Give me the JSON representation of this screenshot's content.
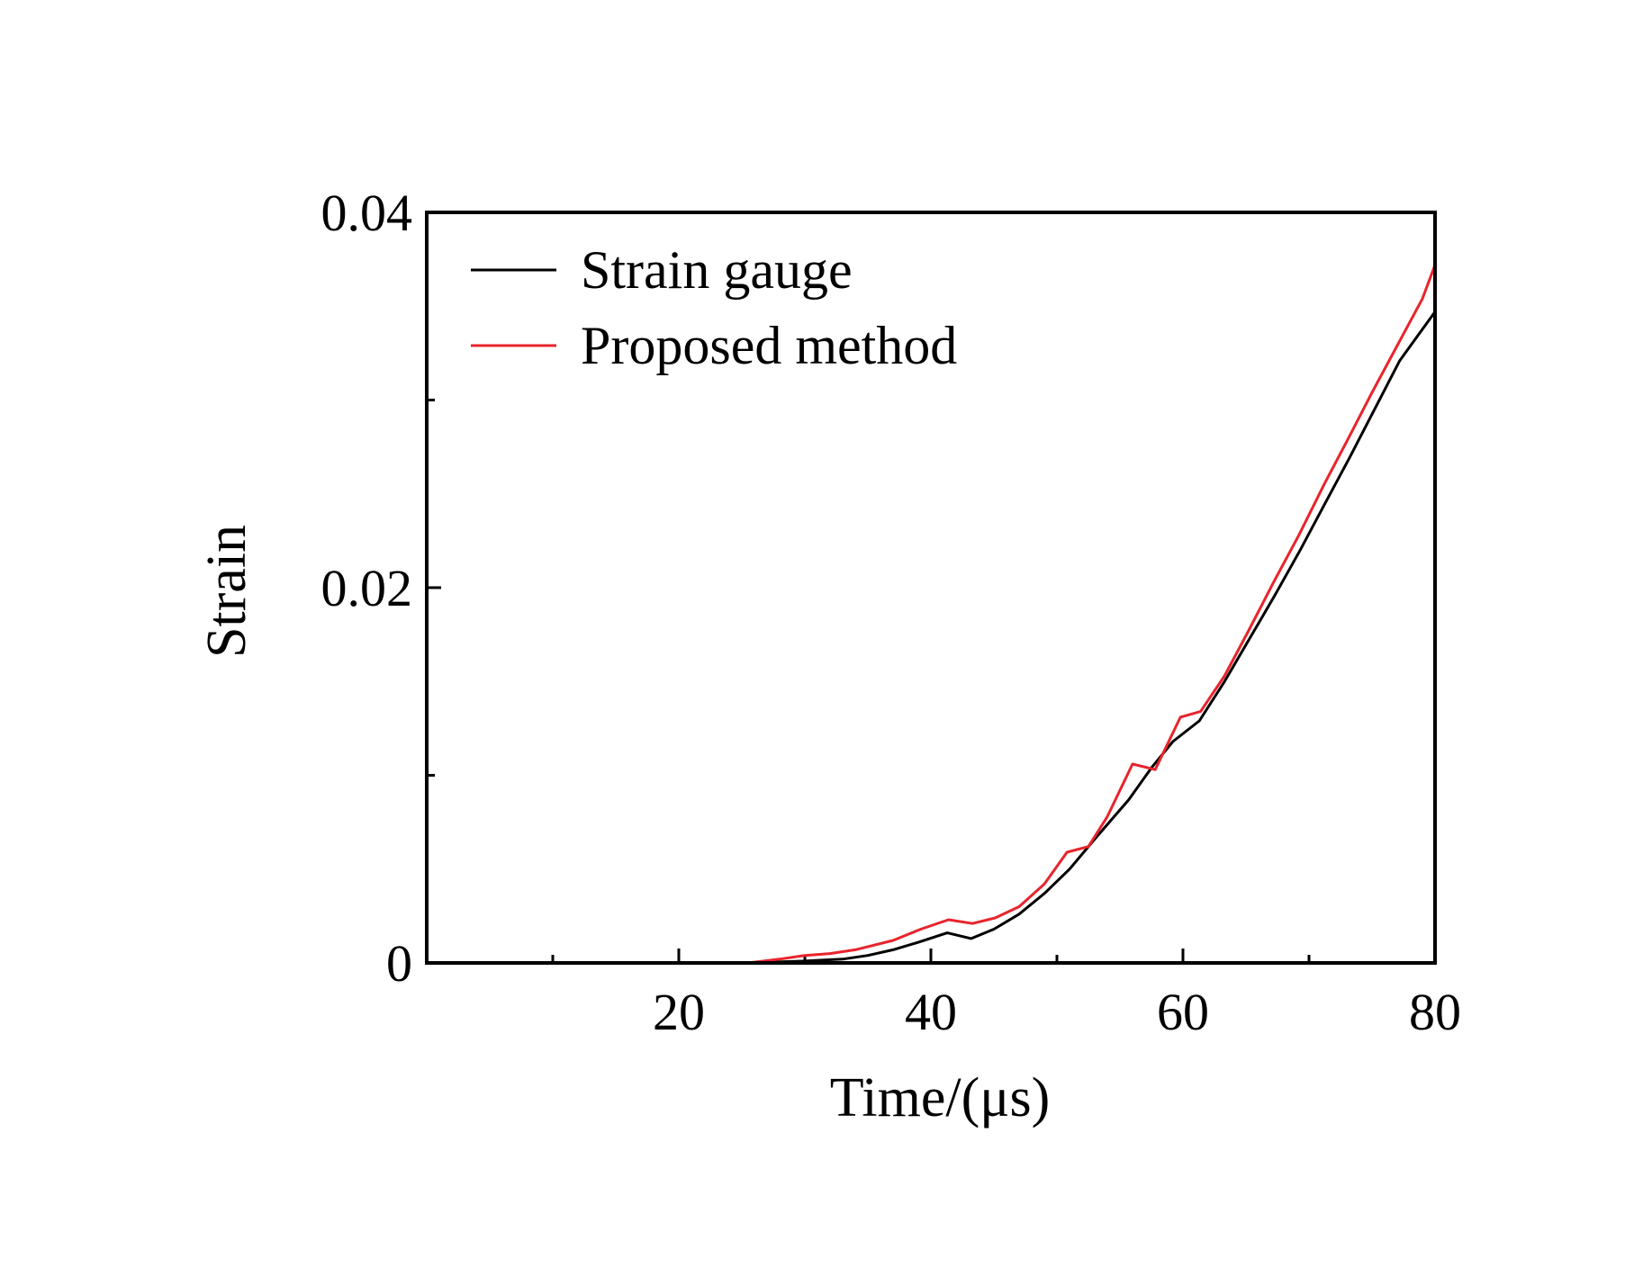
{
  "chart_data": {
    "type": "line",
    "title": "",
    "xlabel": "Time/(μs)",
    "ylabel": "Strain",
    "xlim": [
      0,
      80
    ],
    "ylim": [
      0,
      0.04
    ],
    "xticks_major": [
      20,
      40,
      60,
      80
    ],
    "xticks_minor": [
      10,
      30,
      50,
      70
    ],
    "xtick_labels": [
      "20",
      "40",
      "60",
      "80"
    ],
    "yticks_major": [
      0,
      0.02,
      0.04
    ],
    "yticks_minor": [
      0.01,
      0.03
    ],
    "ytick_labels": [
      "0",
      "0.02",
      "0.04"
    ],
    "grid": false,
    "legend_position": "top-left",
    "series": [
      {
        "name": "Strain gauge",
        "color": "#000000",
        "points": [
          [
            25.5,
            0
          ],
          [
            30,
            0.0001
          ],
          [
            33,
            0.0002
          ],
          [
            35,
            0.0004
          ],
          [
            37,
            0.0007
          ],
          [
            39,
            0.0011
          ],
          [
            41.3,
            0.0016
          ],
          [
            43.2,
            0.0013
          ],
          [
            45,
            0.0018
          ],
          [
            47,
            0.0026
          ],
          [
            49,
            0.0037
          ],
          [
            51,
            0.005
          ],
          [
            53,
            0.0066
          ],
          [
            55.7,
            0.0087
          ],
          [
            57.5,
            0.0104
          ],
          [
            59.2,
            0.0118
          ],
          [
            61.3,
            0.0129
          ],
          [
            63.3,
            0.015
          ],
          [
            65.3,
            0.0173
          ],
          [
            67.3,
            0.0196
          ],
          [
            69.3,
            0.022
          ],
          [
            71.2,
            0.0244
          ],
          [
            73.2,
            0.0269
          ],
          [
            75.2,
            0.0295
          ],
          [
            77.2,
            0.0321
          ],
          [
            80,
            0.0347
          ]
        ]
      },
      {
        "name": "Proposed method",
        "color": "#e8242c",
        "points": [
          [
            25.5,
            0
          ],
          [
            28,
            0.0002
          ],
          [
            30,
            0.0004
          ],
          [
            32,
            0.0005
          ],
          [
            34,
            0.0007
          ],
          [
            37,
            0.0012
          ],
          [
            39.2,
            0.0018
          ],
          [
            41.4,
            0.0023
          ],
          [
            43.3,
            0.0021
          ],
          [
            45.1,
            0.0024
          ],
          [
            47,
            0.003
          ],
          [
            49,
            0.0042
          ],
          [
            50.8,
            0.0059
          ],
          [
            52.5,
            0.0062
          ],
          [
            54,
            0.0078
          ],
          [
            56,
            0.0106
          ],
          [
            57.8,
            0.0103
          ],
          [
            59.8,
            0.0131
          ],
          [
            61.4,
            0.0134
          ],
          [
            63.3,
            0.0153
          ],
          [
            65.2,
            0.0177
          ],
          [
            67.2,
            0.0203
          ],
          [
            69.2,
            0.0228
          ],
          [
            71.2,
            0.0255
          ],
          [
            73,
            0.0278
          ],
          [
            75,
            0.0304
          ],
          [
            77,
            0.0329
          ],
          [
            79,
            0.0354
          ],
          [
            80,
            0.0372
          ]
        ]
      }
    ]
  }
}
